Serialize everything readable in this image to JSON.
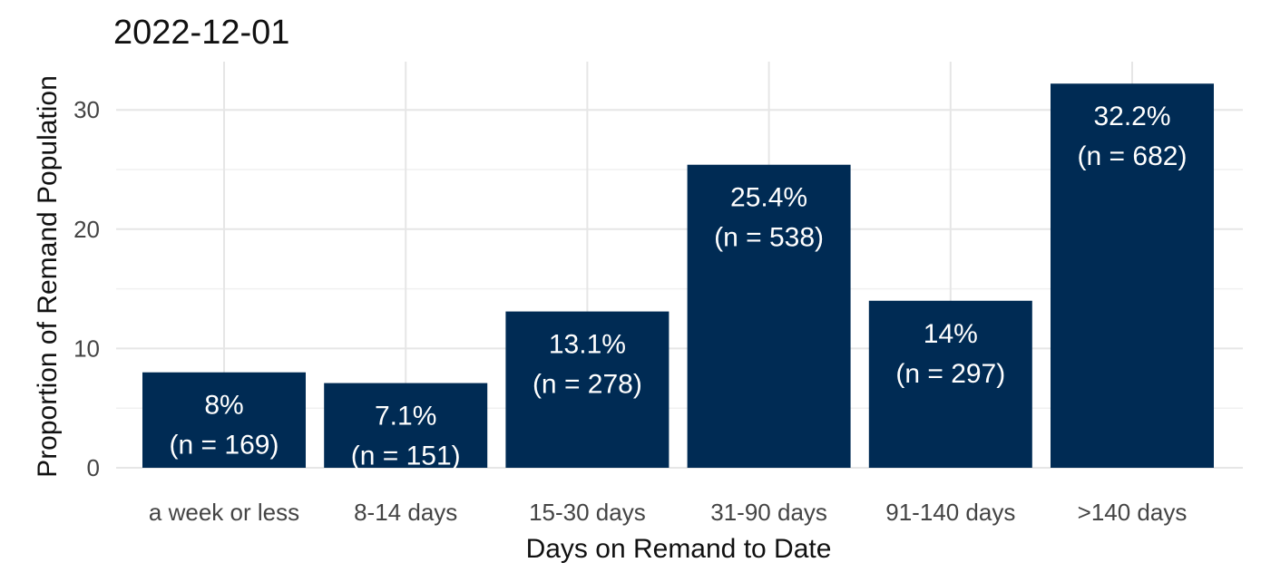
{
  "chart_data": {
    "type": "bar",
    "title": "2022-12-01",
    "xlabel": "Days on Remand to Date",
    "ylabel": "Proportion of Remand Population",
    "categories": [
      "a week or less",
      "8-14 days",
      "15-30 days",
      "31-90 days",
      "91-140 days",
      ">140 days"
    ],
    "values": [
      8,
      7.1,
      13.1,
      25.4,
      14,
      32.2
    ],
    "bar_labels": [
      {
        "percent": "8%",
        "count": "(n = 169)"
      },
      {
        "percent": "7.1%",
        "count": "(n = 151)"
      },
      {
        "percent": "13.1%",
        "count": "(n = 278)"
      },
      {
        "percent": "25.4%",
        "count": "(n = 538)"
      },
      {
        "percent": "14%",
        "count": "(n = 297)"
      },
      {
        "percent": "32.2%",
        "count": "(n = 682)"
      }
    ],
    "yticks": [
      0,
      10,
      20,
      30
    ],
    "ylim": [
      0,
      33.8
    ],
    "grid": true,
    "legend": "none",
    "bar_color": "#002b54"
  }
}
